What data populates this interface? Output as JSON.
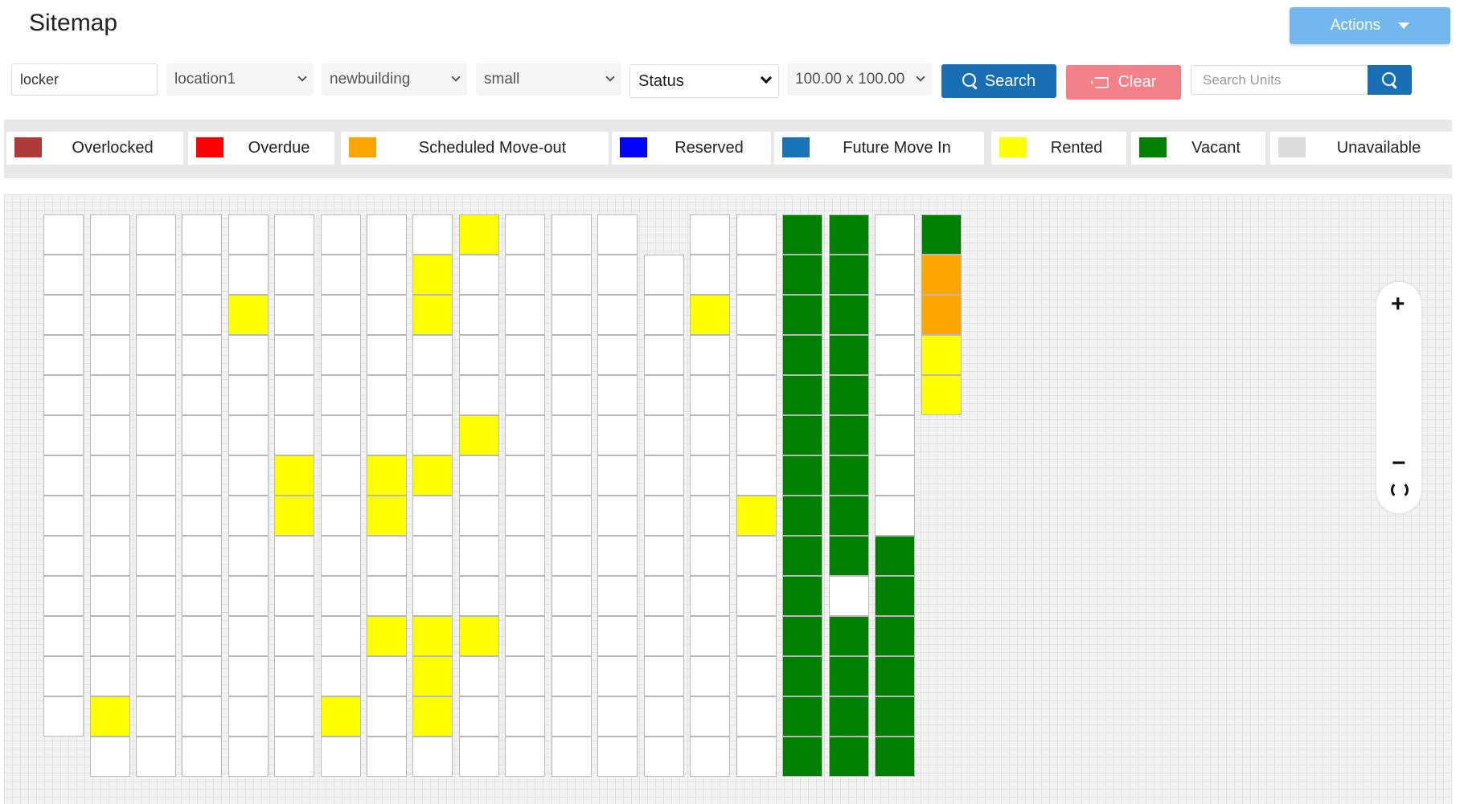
{
  "header": {
    "title": "Sitemap",
    "actions_label": "Actions"
  },
  "filters": {
    "unit_type": "locker",
    "location": "location1",
    "building": "newbuilding",
    "size": "small",
    "status": "Status",
    "dimensions": "100.00 x 100.00",
    "search_label": "Search",
    "clear_label": "Clear",
    "search_units_placeholder": "Search Units"
  },
  "legend": [
    {
      "label": "Overlocked",
      "color": "#b03a3a"
    },
    {
      "label": "Overdue",
      "color": "#ff0000"
    },
    {
      "label": "Scheduled Move-out",
      "color": "#ffa500"
    },
    {
      "label": "Reserved",
      "color": "#0000ff"
    },
    {
      "label": "Future Move In",
      "color": "#1a74b8"
    },
    {
      "label": "Rented",
      "color": "#ffff00"
    },
    {
      "label": "Vacant",
      "color": "#008000"
    },
    {
      "label": "Unavailable",
      "color": "#dcdcdc"
    }
  ],
  "zoom": {
    "plus": "+",
    "minus": "−"
  }
}
